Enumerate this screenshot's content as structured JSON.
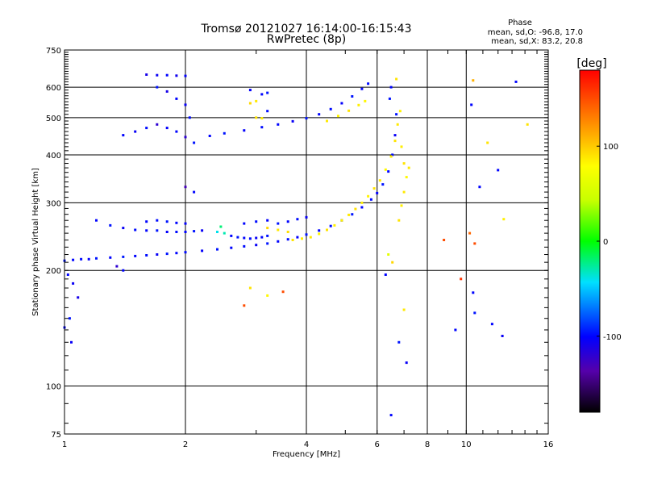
{
  "title": "Tromsø 20121027 16:14:00-16:15:43",
  "subtitle": "RwPretec (8p)",
  "phase_box": {
    "heading": "Phase",
    "line_o": "mean, sd,O: -96.8, 17.0",
    "line_x": "mean, sd,X: 83.2, 20.8"
  },
  "colorbar": {
    "label": "[deg]",
    "range": [
      -180,
      180
    ],
    "ticks": [
      {
        "value": 100,
        "label": "100"
      },
      {
        "value": 0,
        "label": "0"
      },
      {
        "value": -100,
        "label": "-100"
      }
    ]
  },
  "chart_data": {
    "type": "scatter",
    "title": "Tromsø 20121027 16:14:00-16:15:43",
    "subtitle": "RwPretec (8p)",
    "xlabel": "Frequency [MHz]",
    "ylabel": "Stationary phase Virtual Height [km]",
    "x_scale": "log",
    "y_scale": "log",
    "xlim": [
      1,
      16
    ],
    "ylim": [
      75,
      750
    ],
    "x_ticks": [
      {
        "value": 1,
        "label": "1"
      },
      {
        "value": 2,
        "label": "2"
      },
      {
        "value": 4,
        "label": "4"
      },
      {
        "value": 6,
        "label": "6"
      },
      {
        "value": 8,
        "label": "8"
      },
      {
        "value": 10,
        "label": "10"
      },
      {
        "value": 16,
        "label": "16"
      }
    ],
    "y_ticks": [
      {
        "value": 75,
        "label": "75"
      },
      {
        "value": 100,
        "label": "100"
      },
      {
        "value": 200,
        "label": "200"
      },
      {
        "value": 300,
        "label": "300"
      },
      {
        "value": 400,
        "label": "400"
      },
      {
        "value": 500,
        "label": "500"
      },
      {
        "value": 600,
        "label": "600"
      },
      {
        "value": 750,
        "label": "750"
      }
    ],
    "grid": true,
    "color_scale": "phase degrees",
    "points": [
      [
        1.0,
        212,
        -95
      ],
      [
        1.05,
        213,
        -100
      ],
      [
        1.1,
        214,
        -98
      ],
      [
        1.15,
        214,
        -102
      ],
      [
        1.2,
        215,
        -96
      ],
      [
        1.3,
        216,
        -100
      ],
      [
        1.4,
        217,
        -94
      ],
      [
        1.5,
        218,
        -100
      ],
      [
        1.6,
        219,
        -98
      ],
      [
        1.7,
        220,
        -104
      ],
      [
        1.8,
        221,
        -96
      ],
      [
        1.9,
        222,
        -100
      ],
      [
        2.0,
        223,
        -98
      ],
      [
        2.2,
        225,
        -102
      ],
      [
        2.4,
        227,
        -96
      ],
      [
        2.6,
        229,
        -100
      ],
      [
        2.8,
        231,
        -98
      ],
      [
        3.0,
        233,
        -104
      ],
      [
        3.2,
        235,
        -96
      ],
      [
        3.4,
        238,
        -100
      ],
      [
        3.6,
        241,
        -98
      ],
      [
        3.8,
        244,
        -102
      ],
      [
        4.0,
        248,
        -96
      ],
      [
        4.3,
        254,
        -100
      ],
      [
        4.6,
        261,
        -98
      ],
      [
        4.9,
        270,
        -104
      ],
      [
        5.2,
        280,
        -96
      ],
      [
        5.5,
        292,
        -100
      ],
      [
        5.8,
        306,
        -98
      ],
      [
        6.0,
        318,
        -102
      ],
      [
        6.2,
        335,
        -96
      ],
      [
        6.4,
        362,
        -100
      ],
      [
        6.55,
        400,
        -98
      ],
      [
        6.65,
        450,
        -104
      ],
      [
        6.7,
        510,
        -96
      ],
      [
        3.7,
        240,
        90
      ],
      [
        3.9,
        242,
        85
      ],
      [
        4.1,
        244,
        88
      ],
      [
        4.3,
        249,
        82
      ],
      [
        4.5,
        255,
        90
      ],
      [
        4.7,
        262,
        86
      ],
      [
        4.9,
        270,
        84
      ],
      [
        5.1,
        279,
        88
      ],
      [
        5.3,
        289,
        92
      ],
      [
        5.5,
        300,
        86
      ],
      [
        5.7,
        312,
        84
      ],
      [
        5.9,
        327,
        90
      ],
      [
        6.1,
        343,
        88
      ],
      [
        6.3,
        366,
        82
      ],
      [
        6.5,
        396,
        86
      ],
      [
        6.65,
        435,
        90
      ],
      [
        6.75,
        480,
        88
      ],
      [
        6.85,
        520,
        84
      ],
      [
        2.3,
        448,
        -100
      ],
      [
        2.5,
        455,
        -96
      ],
      [
        2.8,
        463,
        -102
      ],
      [
        3.1,
        472,
        -98
      ],
      [
        3.4,
        480,
        -100
      ],
      [
        3.7,
        489,
        -104
      ],
      [
        4.0,
        498,
        -96
      ],
      [
        4.3,
        510,
        -100
      ],
      [
        4.6,
        526,
        -98
      ],
      [
        4.9,
        545,
        -102
      ],
      [
        5.2,
        568,
        -96
      ],
      [
        5.5,
        594,
        -100
      ],
      [
        5.7,
        613,
        -98
      ],
      [
        4.5,
        490,
        88
      ],
      [
        4.8,
        505,
        84
      ],
      [
        5.1,
        521,
        90
      ],
      [
        5.4,
        539,
        86
      ],
      [
        5.6,
        552,
        82
      ],
      [
        1.6,
        647,
        -110
      ],
      [
        1.7,
        645,
        -105
      ],
      [
        1.8,
        645,
        -100
      ],
      [
        1.9,
        643,
        -108
      ],
      [
        2.0,
        642,
        -102
      ],
      [
        1.7,
        600,
        -96
      ],
      [
        1.8,
        585,
        -110
      ],
      [
        1.9,
        560,
        -100
      ],
      [
        2.0,
        540,
        -104
      ],
      [
        2.05,
        500,
        -98
      ],
      [
        1.9,
        460,
        -100
      ],
      [
        2.0,
        445,
        -120
      ],
      [
        2.1,
        430,
        -96
      ],
      [
        1.4,
        450,
        -100
      ],
      [
        1.5,
        460,
        -104
      ],
      [
        1.6,
        470,
        -98
      ],
      [
        1.7,
        480,
        -120
      ],
      [
        1.8,
        470,
        -102
      ],
      [
        2.0,
        330,
        -130
      ],
      [
        2.1,
        320,
        -100
      ],
      [
        2.9,
        545,
        95
      ],
      [
        3.0,
        552,
        88
      ],
      [
        3.1,
        575,
        -100
      ],
      [
        3.2,
        580,
        -96
      ],
      [
        3.0,
        500,
        90
      ],
      [
        3.1,
        498,
        86
      ],
      [
        3.2,
        520,
        -98
      ],
      [
        2.9,
        590,
        -102
      ],
      [
        1.2,
        270,
        -100
      ],
      [
        1.3,
        262,
        -96
      ],
      [
        1.4,
        258,
        -104
      ],
      [
        1.5,
        255,
        -98
      ],
      [
        1.6,
        254,
        -100
      ],
      [
        1.7,
        254,
        -96
      ],
      [
        1.8,
        252,
        -102
      ],
      [
        1.9,
        252,
        -98
      ],
      [
        2.0,
        252,
        -100
      ],
      [
        2.1,
        253,
        -96
      ],
      [
        2.2,
        254,
        -104
      ],
      [
        1.6,
        268,
        -100
      ],
      [
        1.7,
        270,
        -98
      ],
      [
        1.8,
        268,
        -96
      ],
      [
        1.9,
        266,
        -100
      ],
      [
        2.0,
        265,
        -102
      ],
      [
        2.4,
        252,
        -40
      ],
      [
        2.5,
        250,
        -30
      ],
      [
        2.45,
        260,
        -20
      ],
      [
        2.6,
        246,
        -100
      ],
      [
        2.7,
        244,
        -96
      ],
      [
        2.8,
        243,
        -100
      ],
      [
        2.9,
        242,
        -98
      ],
      [
        3.0,
        243,
        -104
      ],
      [
        3.1,
        244,
        -100
      ],
      [
        3.2,
        246,
        -96
      ],
      [
        2.8,
        265,
        -100
      ],
      [
        3.0,
        268,
        -98
      ],
      [
        3.2,
        270,
        -102
      ],
      [
        3.4,
        265,
        -96
      ],
      [
        3.6,
        268,
        -100
      ],
      [
        3.8,
        272,
        -98
      ],
      [
        4.0,
        275,
        -104
      ],
      [
        3.2,
        258,
        95
      ],
      [
        3.4,
        255,
        88
      ],
      [
        3.6,
        252,
        92
      ],
      [
        6.4,
        220,
        60
      ],
      [
        6.55,
        210,
        95
      ],
      [
        6.8,
        270,
        90
      ],
      [
        6.9,
        295,
        85
      ],
      [
        7.0,
        320,
        88
      ],
      [
        7.1,
        350,
        82
      ],
      [
        7.0,
        380,
        90
      ],
      [
        6.9,
        420,
        86
      ],
      [
        7.2,
        370,
        88
      ],
      [
        6.7,
        630,
        90
      ],
      [
        6.5,
        600,
        -100
      ],
      [
        6.45,
        560,
        -96
      ],
      [
        1.02,
        195,
        -100
      ],
      [
        1.05,
        185,
        -105
      ],
      [
        1.08,
        170,
        -110
      ],
      [
        1.03,
        150,
        -96
      ],
      [
        1.04,
        130,
        -104
      ],
      [
        1.0,
        142,
        -100
      ],
      [
        1.35,
        205,
        -120
      ],
      [
        1.4,
        200,
        -100
      ],
      [
        2.9,
        180,
        90
      ],
      [
        3.2,
        172,
        82
      ],
      [
        3.5,
        176,
        150
      ],
      [
        2.8,
        162,
        150
      ],
      [
        6.3,
        195,
        -100
      ],
      [
        7.0,
        158,
        88
      ],
      [
        6.8,
        130,
        -96
      ],
      [
        6.5,
        84,
        -100
      ],
      [
        7.1,
        115,
        -104
      ],
      [
        9.4,
        140,
        -100
      ],
      [
        9.7,
        190,
        160
      ],
      [
        10.4,
        175,
        -100
      ],
      [
        10.5,
        155,
        -96
      ],
      [
        11.6,
        145,
        -100
      ],
      [
        12.3,
        135,
        -104
      ],
      [
        8.8,
        240,
        150
      ],
      [
        10.2,
        250,
        140
      ],
      [
        10.5,
        235,
        150
      ],
      [
        10.8,
        330,
        -100
      ],
      [
        11.3,
        430,
        90
      ],
      [
        12.0,
        365,
        -100
      ],
      [
        12.4,
        272,
        85
      ],
      [
        14.2,
        480,
        90
      ],
      [
        13.3,
        620,
        -100
      ],
      [
        10.4,
        625,
        110
      ],
      [
        10.3,
        540,
        -100
      ]
    ]
  }
}
